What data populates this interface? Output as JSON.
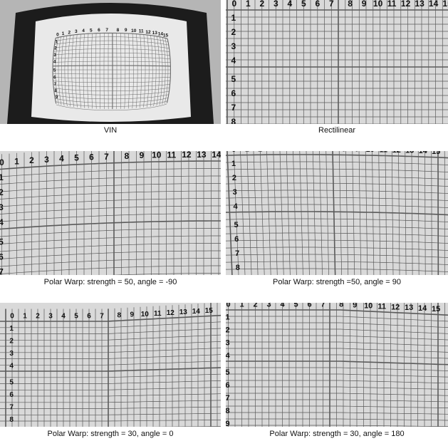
{
  "panels": [
    {
      "caption": "VIN"
    },
    {
      "caption": "Rectilinear"
    },
    {
      "caption": "Polar Warp: strength = 50, angle = -90"
    },
    {
      "caption": "Polar Warp: strength =50, angle = 90"
    },
    {
      "caption": "Polar Warp: strength = 30, angle = 0"
    },
    {
      "caption": "Polar Warp: strength = 30, angle = 180"
    }
  ],
  "column_numbers": [
    "0",
    "1",
    "2",
    "3",
    "4",
    "5",
    "6",
    "7",
    "8",
    "9",
    "10",
    "11",
    "12",
    "13",
    "14",
    "15"
  ],
  "row_numbers": [
    "1",
    "2",
    "3",
    "4",
    "5",
    "6",
    "7",
    "8",
    "9"
  ],
  "colors": {
    "paper": "#d9d9d9",
    "grid_line": "#5a5a5a",
    "ink": "#111111",
    "frame_dark": "#1a1a1a"
  }
}
